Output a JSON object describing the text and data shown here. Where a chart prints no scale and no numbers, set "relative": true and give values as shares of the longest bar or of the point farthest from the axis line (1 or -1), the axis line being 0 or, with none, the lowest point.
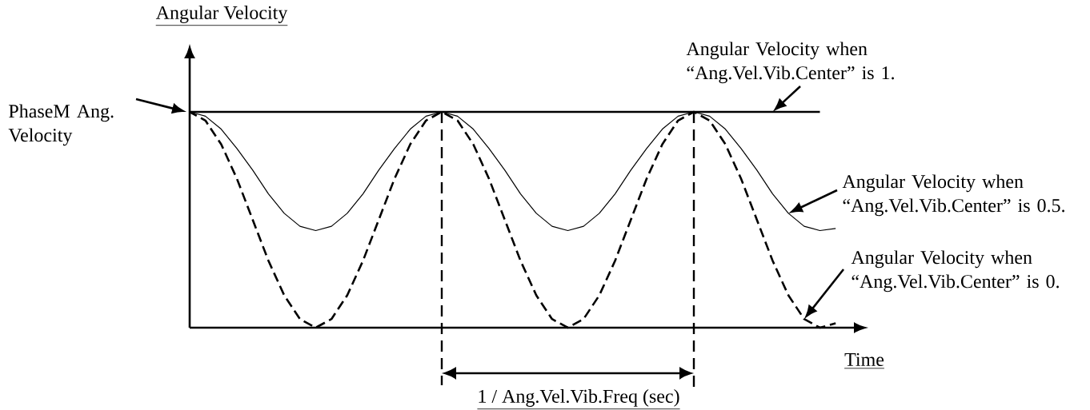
{
  "chart_data": {
    "type": "line",
    "relative": true,
    "ylabel": "Angular Velocity",
    "xlabel": "Time",
    "categories": [
      null,
      null,
      null,
      null,
      null,
      null,
      null,
      null,
      null,
      null,
      null,
      null,
      null,
      null,
      null,
      null,
      null,
      null,
      null,
      null,
      null,
      null,
      null,
      null,
      null,
      null,
      null,
      null,
      null,
      null,
      null,
      null,
      null,
      null,
      null,
      null,
      null,
      null,
      null,
      null,
      null,
      null
    ],
    "series": [
      {
        "name": "Angular Velocity when “Ang.Vel.Vib.Center” is 1.",
        "color": "#000000",
        "line_style": "solid",
        "values": [
          1,
          1,
          1,
          1,
          1,
          1,
          1,
          1,
          1,
          1,
          1,
          1,
          1,
          1,
          1,
          1,
          1,
          1,
          1,
          1,
          1,
          1,
          1,
          1,
          1,
          1,
          1,
          1,
          1,
          1,
          1,
          1,
          1,
          1,
          1,
          1,
          1,
          1,
          1,
          1,
          1,
          null
        ]
      },
      {
        "name": "Angular Velocity when “Ang.Vel.Vib.Center” is 0.5.",
        "color": "#000000",
        "line_style": "solid",
        "values": [
          1,
          0.98,
          0.92,
          0.83,
          0.73,
          0.62,
          0.53,
          0.47,
          0.45,
          0.47,
          0.53,
          0.62,
          0.73,
          0.83,
          0.92,
          0.98,
          1,
          0.98,
          0.92,
          0.83,
          0.73,
          0.62,
          0.53,
          0.47,
          0.45,
          0.47,
          0.53,
          0.62,
          0.73,
          0.83,
          0.92,
          0.98,
          1,
          0.98,
          0.92,
          0.83,
          0.73,
          0.62,
          0.53,
          0.47,
          0.45,
          0.46
        ]
      },
      {
        "name": "Angular Velocity when “Ang.Vel.Vib.Center” is 0.",
        "color": "#000000",
        "line_style": "dashed",
        "values": [
          1,
          0.96,
          0.85,
          0.69,
          0.5,
          0.31,
          0.15,
          0.04,
          0,
          0.04,
          0.15,
          0.31,
          0.5,
          0.69,
          0.85,
          0.96,
          1,
          0.96,
          0.85,
          0.69,
          0.5,
          0.31,
          0.15,
          0.04,
          0,
          0.04,
          0.15,
          0.31,
          0.5,
          0.69,
          0.85,
          0.96,
          1,
          0.96,
          0.85,
          0.69,
          0.5,
          0.31,
          0.15,
          0.04,
          0,
          0.02
        ]
      }
    ],
    "annotations": [
      "PhaseM Ang. Velocity",
      "1 / Ang.Vel.Vib.Freq (sec)"
    ]
  }
}
